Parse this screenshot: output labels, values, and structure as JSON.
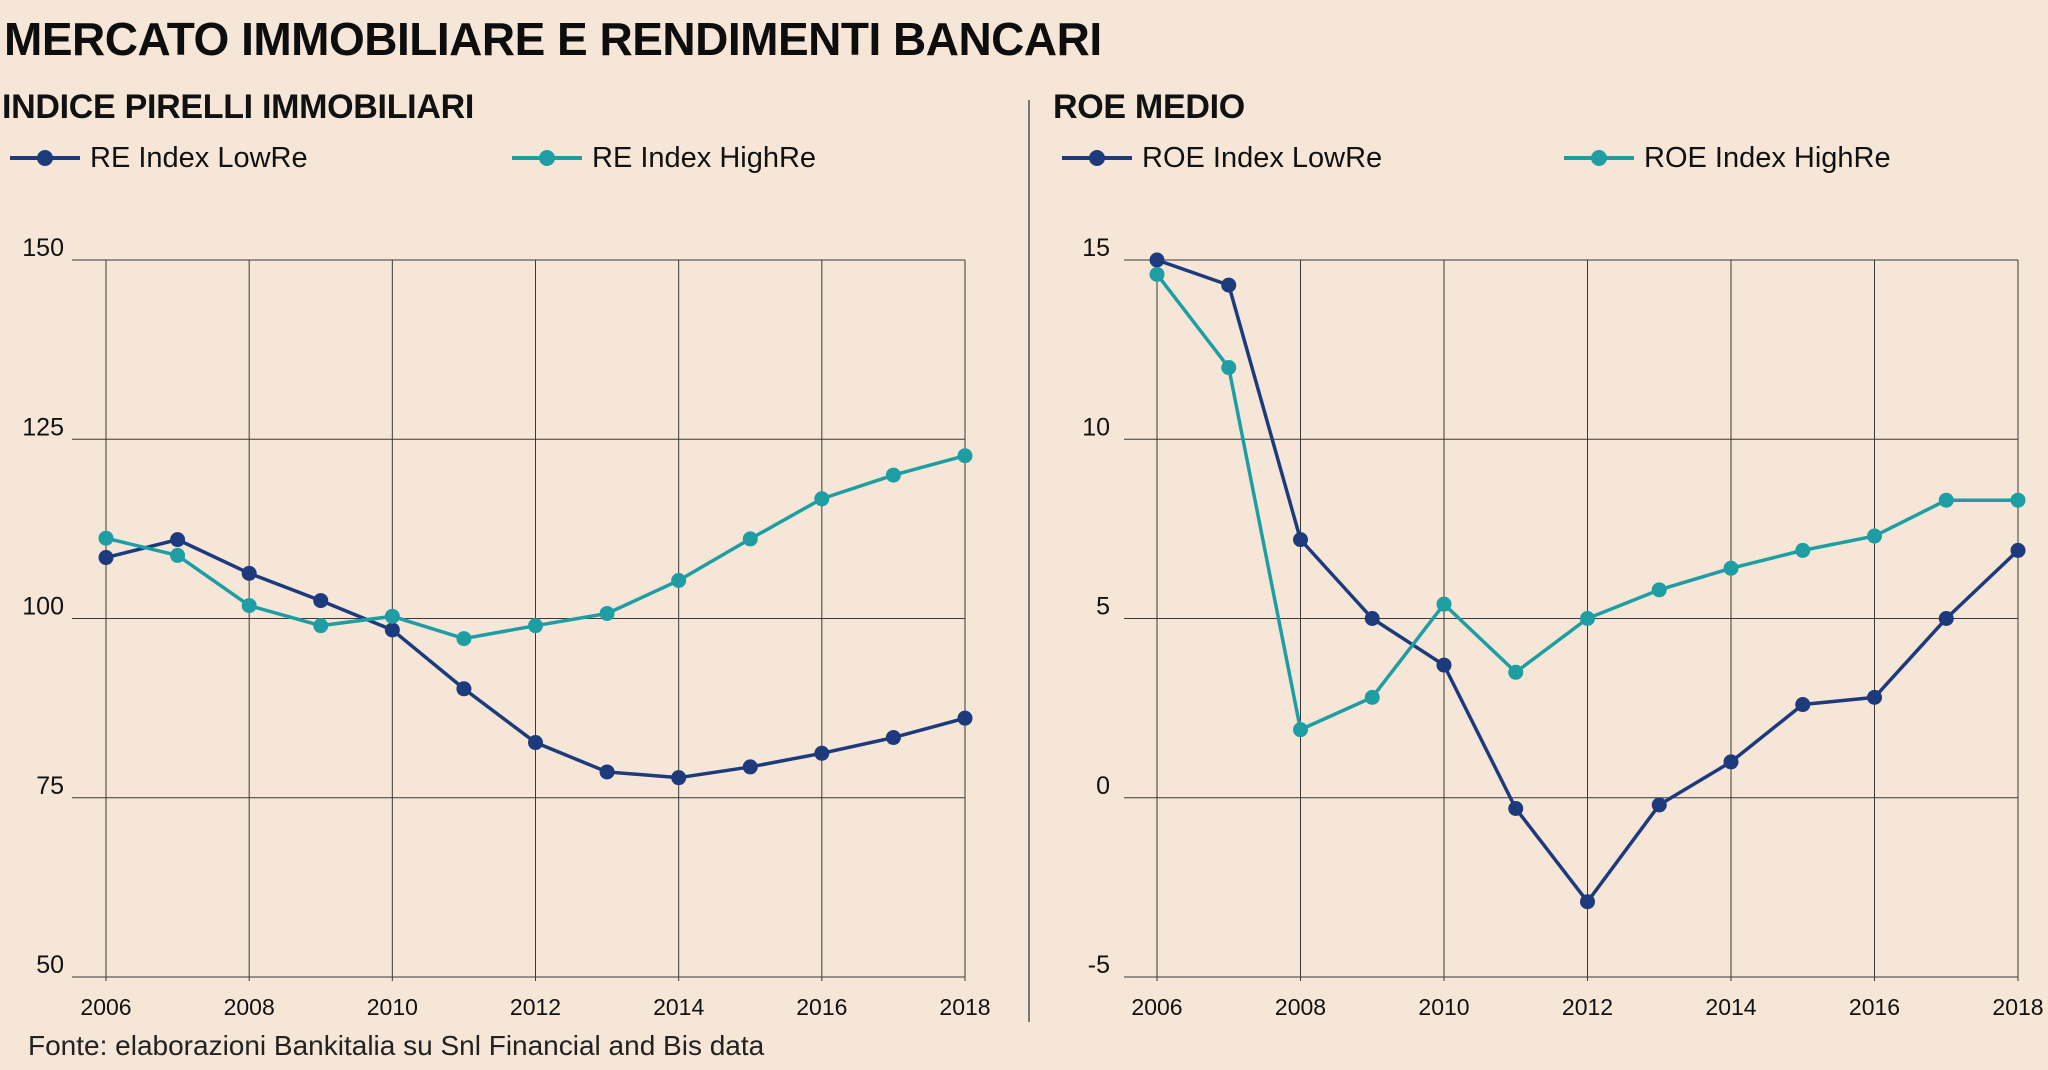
{
  "title": "MERCATO IMMOBILIARE E RENDIMENTI BANCARI",
  "source": "Fonte: elaborazioni Bankitalia su Snl Financial and Bis data",
  "colors": {
    "low": "#1c3a7c",
    "high": "#1e9ea3",
    "grid": "#3a3a3a"
  },
  "chart_data": [
    {
      "type": "line",
      "title": "INDICE PIRELLI IMMOBILIARI",
      "xlabel": "",
      "ylabel": "",
      "x": [
        2006,
        2007,
        2008,
        2009,
        2010,
        2011,
        2012,
        2013,
        2014,
        2015,
        2016,
        2017,
        2018
      ],
      "xticks": [
        "2006",
        "2008",
        "2010",
        "2012",
        "2014",
        "2016",
        "2018"
      ],
      "yticks": [
        "150",
        "125",
        "100",
        "75",
        "50"
      ],
      "ylim": [
        50,
        150
      ],
      "xlim": [
        2006,
        2018
      ],
      "grid": true,
      "legend": "top",
      "series": [
        {
          "name": "RE Index LowRe",
          "values": [
            108.5,
            111,
            106.3,
            102.5,
            98.4,
            90.2,
            82.7,
            78.6,
            77.8,
            79.3,
            81.2,
            83.4,
            86.1
          ]
        },
        {
          "name": "RE Index HighRe",
          "values": [
            111.2,
            108.8,
            101.8,
            99,
            100.3,
            97.2,
            99,
            100.7,
            105.3,
            111.1,
            116.7,
            120,
            122.7
          ]
        }
      ]
    },
    {
      "type": "line",
      "title": "ROE MEDIO",
      "xlabel": "",
      "ylabel": "",
      "x": [
        2006,
        2007,
        2008,
        2009,
        2010,
        2011,
        2012,
        2013,
        2014,
        2015,
        2016,
        2017,
        2018
      ],
      "xticks": [
        "2006",
        "2008",
        "2010",
        "2012",
        "2014",
        "2016",
        "2018"
      ],
      "yticks": [
        "15",
        "10",
        "5",
        "0",
        "-5"
      ],
      "ylim": [
        -5,
        15
      ],
      "xlim": [
        2006,
        2018
      ],
      "grid": true,
      "legend": "top",
      "series": [
        {
          "name": "ROE Index LowRe",
          "values": [
            15,
            14.3,
            7.2,
            5,
            3.7,
            -0.3,
            -2.9,
            -0.2,
            1,
            2.6,
            2.8,
            5,
            6.9
          ]
        },
        {
          "name": "ROE Index HighRe",
          "values": [
            14.6,
            12,
            1.9,
            2.8,
            5.4,
            3.5,
            5,
            5.8,
            6.4,
            6.9,
            7.3,
            8.3,
            8.3
          ]
        }
      ]
    }
  ]
}
